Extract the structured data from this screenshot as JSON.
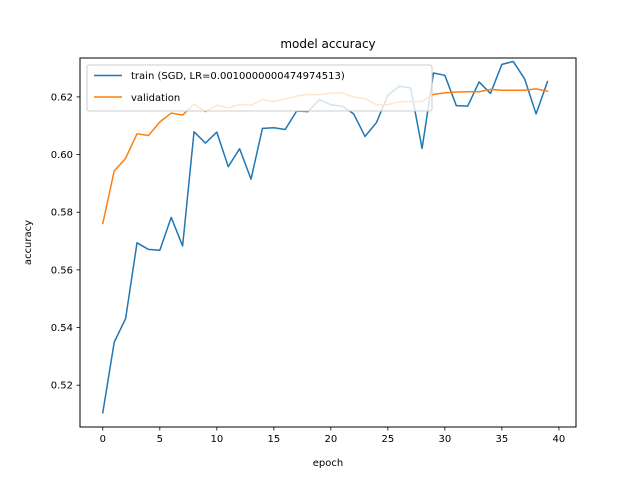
{
  "chart_data": {
    "type": "line",
    "title": "model accuracy",
    "xlabel": "epoch",
    "ylabel": "accuracy",
    "xlim": [
      -2,
      41.5
    ],
    "ylim": [
      0.5055,
      0.6335
    ],
    "xticks": [
      0,
      5,
      10,
      15,
      20,
      25,
      30,
      35,
      40
    ],
    "yticks": [
      0.52,
      0.54,
      0.56,
      0.58,
      0.6,
      0.62
    ],
    "ytick_labels": [
      "0.52",
      "0.54",
      "0.56",
      "0.58",
      "0.60",
      "0.62"
    ],
    "grid": false,
    "legend_position": "upper-left",
    "series": [
      {
        "name": "train (SGD, LR=0.0010000000474974513)",
        "color": "#1f77b4",
        "x": [
          0,
          1,
          2,
          3,
          4,
          5,
          6,
          7,
          8,
          9,
          10,
          11,
          12,
          13,
          14,
          15,
          16,
          17,
          18,
          19,
          20,
          21,
          22,
          23,
          24,
          25,
          26,
          27,
          28,
          29,
          30,
          31,
          32,
          33,
          34,
          35,
          36,
          37,
          38,
          39
        ],
        "values": [
          0.5105,
          0.5349,
          0.5431,
          0.5694,
          0.5671,
          0.5668,
          0.5782,
          0.5683,
          0.6079,
          0.604,
          0.6078,
          0.5958,
          0.602,
          0.5915,
          0.6091,
          0.6093,
          0.6087,
          0.6151,
          0.6149,
          0.6191,
          0.6173,
          0.6168,
          0.6141,
          0.6063,
          0.6111,
          0.6206,
          0.6237,
          0.6231,
          0.6021,
          0.6283,
          0.6275,
          0.617,
          0.6168,
          0.6252,
          0.6212,
          0.6313,
          0.6323,
          0.6262,
          0.6141,
          0.6253
        ]
      },
      {
        "name": "validation",
        "color": "#ff7f0e",
        "x": [
          0,
          1,
          2,
          3,
          4,
          5,
          6,
          7,
          8,
          9,
          10,
          11,
          12,
          13,
          14,
          15,
          16,
          17,
          18,
          19,
          20,
          21,
          22,
          23,
          24,
          25,
          26,
          27,
          28,
          29,
          30,
          31,
          32,
          33,
          34,
          35,
          36,
          37,
          38,
          39
        ],
        "values": [
          0.5761,
          0.5943,
          0.5987,
          0.6072,
          0.6066,
          0.6113,
          0.6144,
          0.6137,
          0.6175,
          0.6149,
          0.6171,
          0.6162,
          0.6174,
          0.6171,
          0.6191,
          0.6184,
          0.6193,
          0.6203,
          0.6208,
          0.6208,
          0.6213,
          0.6214,
          0.62,
          0.6194,
          0.6173,
          0.6173,
          0.6183,
          0.6184,
          0.6184,
          0.6209,
          0.6214,
          0.6217,
          0.6218,
          0.6218,
          0.6226,
          0.6223,
          0.6223,
          0.6223,
          0.6228,
          0.622
        ]
      }
    ]
  }
}
